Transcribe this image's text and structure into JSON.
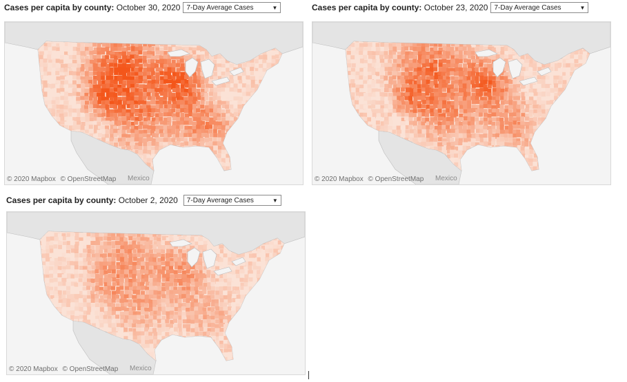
{
  "panels": [
    {
      "title_prefix": "Cases per capita by county:",
      "date": "October 30, 2020",
      "measure": "7-Day Average Cases",
      "attribution_1": "© 2020 Mapbox",
      "attribution_2": "© OpenStreetMap",
      "country_label": "Mexico",
      "intensity": 1.0
    },
    {
      "title_prefix": "Cases per capita by county:",
      "date": "October 23, 2020",
      "measure": "7-Day Average Cases",
      "attribution_1": "© 2020 Mapbox",
      "attribution_2": "© OpenStreetMap",
      "country_label": "Mexico",
      "intensity": 0.82
    },
    {
      "title_prefix": "Cases per capita by county:",
      "date": "October 2, 2020",
      "measure": "7-Day Average Cases",
      "attribution_1": "© 2020 Mapbox",
      "attribution_2": "© OpenStreetMap",
      "country_label": "Mexico",
      "intensity": 0.55
    }
  ],
  "colors": {
    "land": "#e4e4e4",
    "water": "#f4f4f4",
    "border": "#bdbdbd",
    "low": "#fbe2d6",
    "high": "#f4561a"
  }
}
